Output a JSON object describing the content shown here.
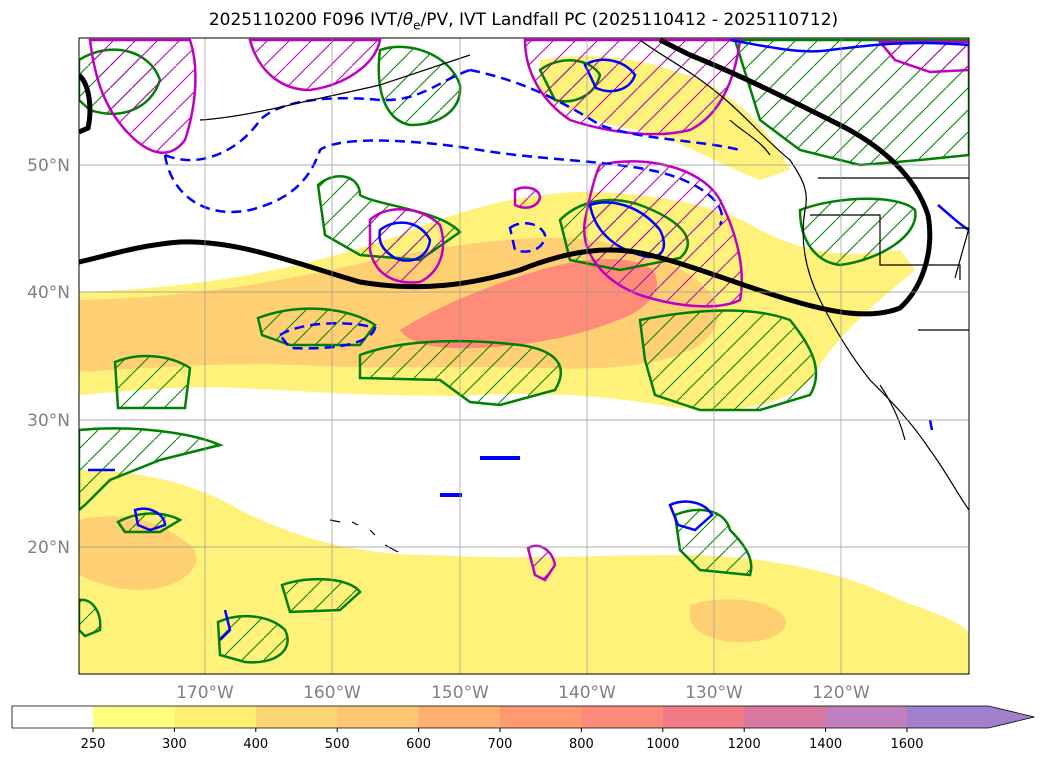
{
  "title_prefix": "2025110200 F096 IVT/",
  "title_theta": "θ",
  "title_theta_sub": "e",
  "title_suffix": "/PV, IVT Landfall PC (2025110412 - 2025110712)",
  "map": {
    "lon_range": [
      -180,
      -110
    ],
    "lat_range": [
      10,
      60
    ],
    "lat_ticks": [
      {
        "value": 20,
        "label": "20°N"
      },
      {
        "value": 30,
        "label": "30°N"
      },
      {
        "value": 40,
        "label": "40°N"
      },
      {
        "value": 50,
        "label": "50°N"
      }
    ],
    "lon_ticks": [
      {
        "value": -170,
        "label": "170°W"
      },
      {
        "value": -160,
        "label": "160°W"
      },
      {
        "value": -150,
        "label": "150°W"
      },
      {
        "value": -140,
        "label": "140°W"
      },
      {
        "value": -130,
        "label": "130°W"
      },
      {
        "value": -120,
        "label": "120°W"
      }
    ],
    "grid": true
  },
  "colorbar": {
    "levels": [
      250,
      300,
      400,
      500,
      600,
      700,
      800,
      1000,
      1200,
      1400,
      1600
    ],
    "colors": [
      "#ffff80",
      "#ffee70",
      "#ffd573",
      "#ffc773",
      "#ffb070",
      "#ff9a70",
      "#ff8a7a",
      "#f07a85",
      "#d878a0",
      "#c080c0",
      "#a080cc"
    ],
    "extend": "max"
  },
  "colors": {
    "ivt_fill_low": "#fff27a",
    "ivt_fill_mid": "#ffc873",
    "ivt_fill_high": "#ff8c78",
    "landfall_pc_contour": "#000000",
    "theta_e_contour": "#008000",
    "pv_contour": "#0000ff",
    "magenta_contour": "#c000c0"
  }
}
